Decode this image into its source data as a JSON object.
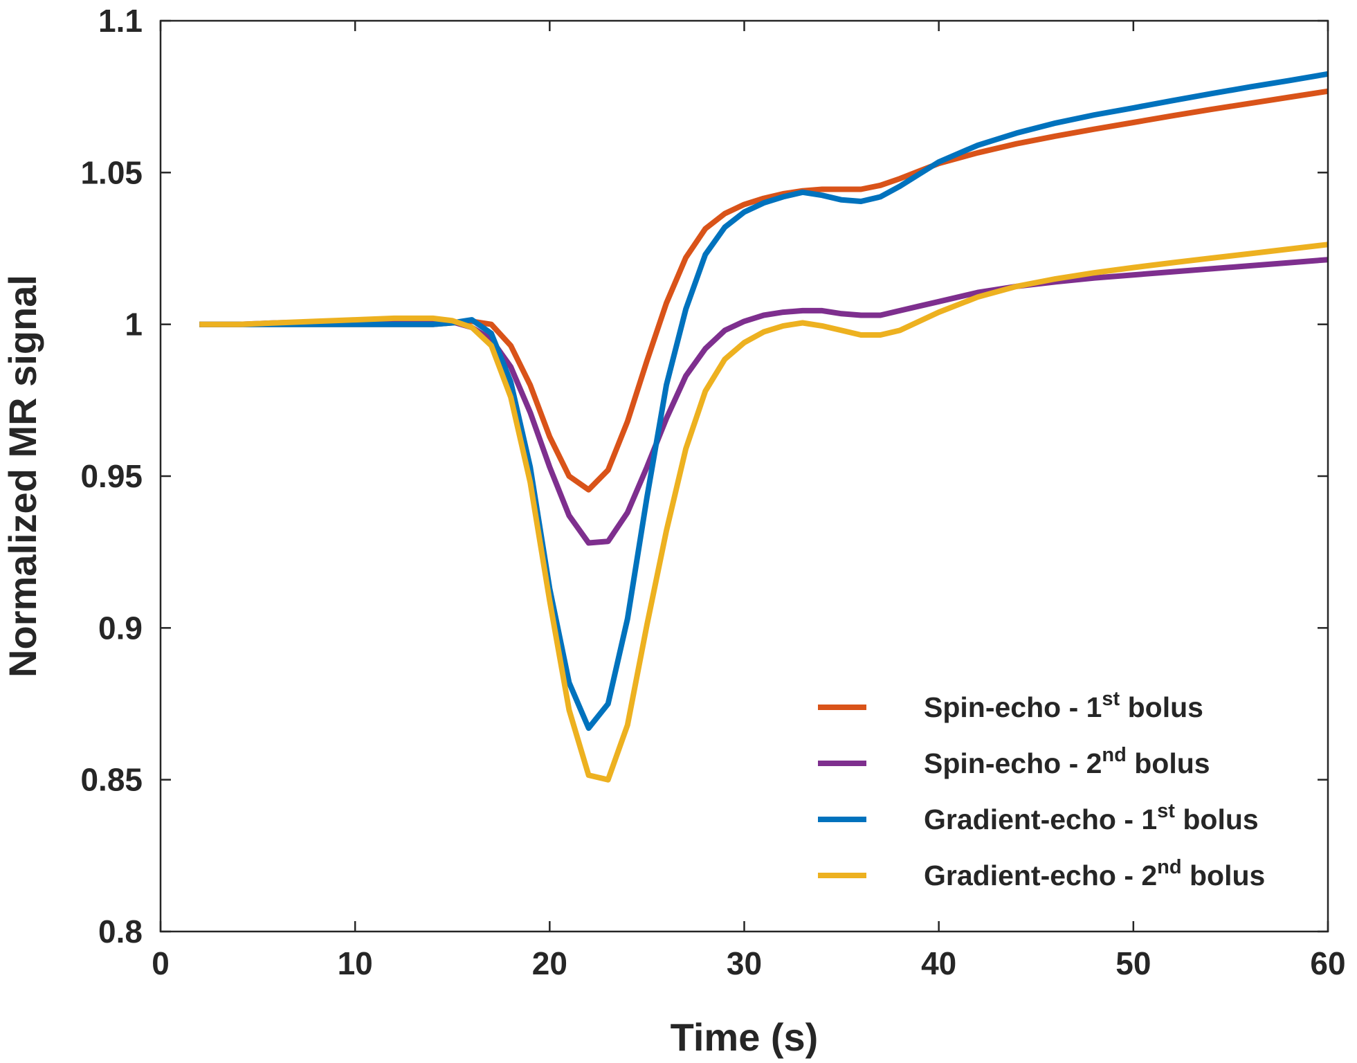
{
  "chart_data": {
    "type": "line",
    "xlabel": "Time (s)",
    "ylabel": "Normalized MR signal",
    "xlim": [
      0,
      60
    ],
    "ylim": [
      0.8,
      1.1
    ],
    "xticks": [
      0,
      10,
      20,
      30,
      40,
      50,
      60
    ],
    "yticks": [
      0.8,
      0.85,
      0.9,
      0.95,
      1,
      1.05,
      1.1
    ],
    "xtick_labels": [
      "0",
      "10",
      "20",
      "30",
      "40",
      "50",
      "60"
    ],
    "ytick_labels": [
      "0.8",
      "0.85",
      "0.9",
      "0.95",
      "1",
      "1.05",
      "1.1"
    ],
    "grid": false,
    "legend_position": "bottom-right",
    "x": [
      2,
      4,
      6,
      8,
      10,
      12,
      14,
      15,
      16,
      17,
      18,
      19,
      20,
      21,
      22,
      23,
      24,
      25,
      26,
      27,
      28,
      29,
      30,
      31,
      32,
      33,
      34,
      35,
      36,
      37,
      38,
      39,
      40,
      42,
      44,
      46,
      48,
      50,
      52,
      54,
      56,
      58,
      60
    ],
    "series": [
      {
        "name_parts": [
          "Spin-echo - 1",
          "st",
          " bolus"
        ],
        "color": "#D95319",
        "values": [
          1.0,
          1.0,
          1.0,
          1.0,
          1.0,
          1.0,
          1.0,
          1.0005,
          1.001,
          1.0,
          0.993,
          0.98,
          0.963,
          0.95,
          0.9455,
          0.952,
          0.968,
          0.988,
          1.007,
          1.022,
          1.0315,
          1.0365,
          1.0395,
          1.0415,
          1.043,
          1.044,
          1.0445,
          1.0445,
          1.0445,
          1.0458,
          1.048,
          1.0505,
          1.053,
          1.0565,
          1.0595,
          1.062,
          1.0643,
          1.0665,
          1.0687,
          1.0708,
          1.0728,
          1.0748,
          1.0768
        ]
      },
      {
        "name_parts": [
          "Spin-echo - 2",
          "nd",
          " bolus"
        ],
        "color": "#7E2F8E",
        "values": [
          1.0,
          1.0,
          1.0005,
          1.0008,
          1.001,
          1.0012,
          1.0012,
          1.0008,
          0.999,
          0.995,
          0.986,
          0.971,
          0.953,
          0.937,
          0.928,
          0.9285,
          0.938,
          0.953,
          0.969,
          0.983,
          0.992,
          0.998,
          1.001,
          1.003,
          1.004,
          1.0045,
          1.0045,
          1.0035,
          1.003,
          1.003,
          1.0045,
          1.006,
          1.0075,
          1.0105,
          1.0125,
          1.014,
          1.0153,
          1.0163,
          1.0173,
          1.0183,
          1.0193,
          1.0203,
          1.0213
        ]
      },
      {
        "name_parts": [
          "Gradient-echo - 1",
          "st",
          " bolus"
        ],
        "color": "#0072BD",
        "values": [
          1.0,
          1.0,
          1.0,
          1.0,
          1.0,
          1.0,
          1.0,
          1.0005,
          1.0015,
          0.997,
          0.981,
          0.953,
          0.913,
          0.882,
          0.867,
          0.875,
          0.903,
          0.943,
          0.98,
          1.005,
          1.023,
          1.032,
          1.037,
          1.04,
          1.042,
          1.0435,
          1.0425,
          1.041,
          1.0405,
          1.042,
          1.0455,
          1.0495,
          1.0535,
          1.059,
          1.063,
          1.0663,
          1.069,
          1.0713,
          1.0737,
          1.076,
          1.0782,
          1.0803,
          1.0825
        ]
      },
      {
        "name_parts": [
          "Gradient-echo - 2",
          "nd",
          " bolus"
        ],
        "color": "#EDB120",
        "values": [
          1.0,
          1.0,
          1.0005,
          1.001,
          1.0015,
          1.002,
          1.002,
          1.0012,
          0.999,
          0.993,
          0.976,
          0.948,
          0.909,
          0.873,
          0.8515,
          0.85,
          0.868,
          0.901,
          0.932,
          0.959,
          0.978,
          0.9885,
          0.994,
          0.9975,
          0.9995,
          1.0005,
          0.9995,
          0.998,
          0.9965,
          0.9965,
          0.998,
          1.001,
          1.004,
          1.009,
          1.0125,
          1.015,
          1.017,
          1.0187,
          1.0203,
          1.0218,
          1.0233,
          1.0248,
          1.0263
        ]
      }
    ]
  }
}
